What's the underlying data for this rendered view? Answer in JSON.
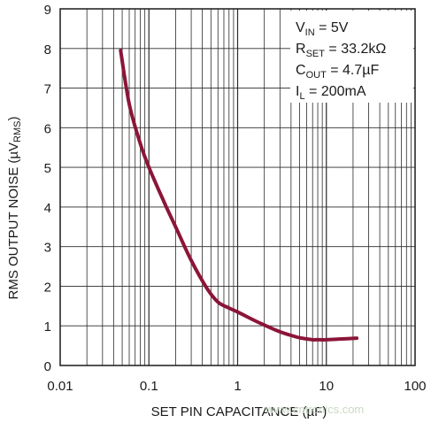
{
  "chart_data": {
    "type": "line",
    "x_scale": "log",
    "xlabel": "SET PIN CAPACITANCE (µF)",
    "ylabel_main": "RMS OUTPUT NOISE (µV",
    "ylabel_sub": "RMS",
    "ylabel_close": ")",
    "xlim": [
      0.01,
      100
    ],
    "ylim": [
      0,
      9
    ],
    "x_ticks": [
      0.01,
      0.1,
      1,
      10,
      100
    ],
    "x_tick_labels": [
      "0.01",
      "0.1",
      "1",
      "10",
      "100"
    ],
    "y_ticks": [
      0,
      1,
      2,
      3,
      4,
      5,
      6,
      7,
      8,
      9
    ],
    "y_tick_labels": [
      "0",
      "1",
      "2",
      "3",
      "4",
      "5",
      "6",
      "7",
      "8",
      "9"
    ],
    "grid": true,
    "series": [
      {
        "color": "#8b1538",
        "x": [
          0.048,
          0.06,
          0.08,
          0.1,
          0.15,
          0.2,
          0.3,
          0.45,
          0.6,
          0.8,
          1,
          1.5,
          2,
          3,
          4,
          5,
          6,
          7,
          8,
          10,
          15,
          22
        ],
        "y": [
          7.95,
          6.6,
          5.6,
          5.0,
          4.1,
          3.5,
          2.65,
          1.95,
          1.6,
          1.45,
          1.35,
          1.15,
          1.02,
          0.85,
          0.76,
          0.7,
          0.67,
          0.65,
          0.65,
          0.65,
          0.67,
          0.69
        ]
      }
    ],
    "annotation": {
      "lines": [
        {
          "main": "V",
          "sub": "IN",
          "rest": " = 5V"
        },
        {
          "main": "R",
          "sub": "SET",
          "rest": " = 33.2kΩ"
        },
        {
          "main": "C",
          "sub": "OUT",
          "rest": " = 4.7µF"
        },
        {
          "main": "I",
          "sub": "L",
          "rest": " = 200mA"
        }
      ]
    }
  },
  "watermark": "www.cntronics.com"
}
